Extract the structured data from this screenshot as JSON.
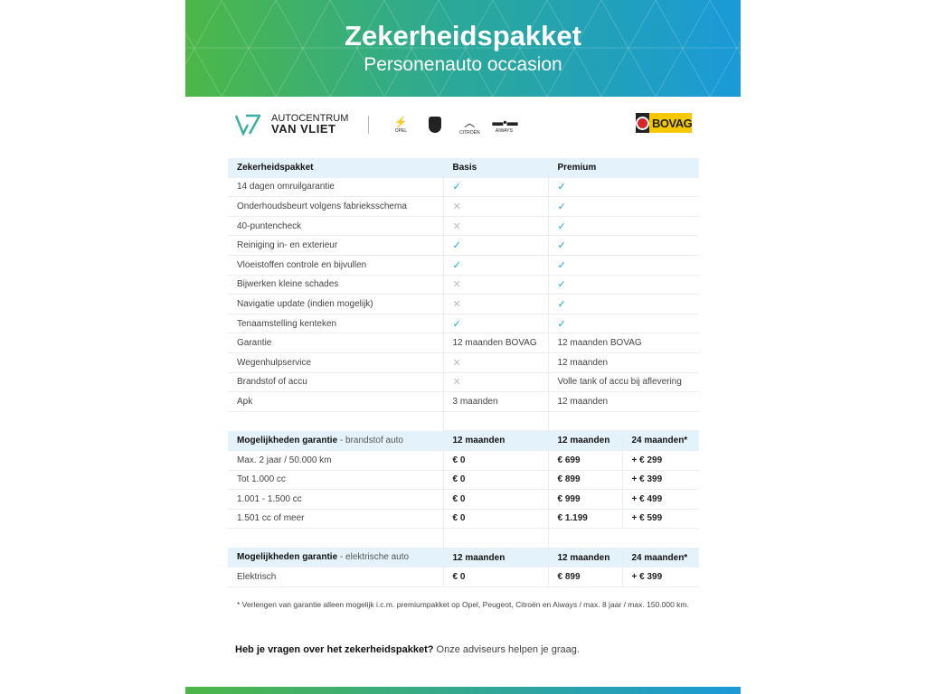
{
  "header": {
    "title": "Zekerheidspakket",
    "subtitle": "Personenauto occasion"
  },
  "logos": {
    "dealer_line1": "AUTOCENTRUM",
    "dealer_line2": "VAN VLIET",
    "brands": [
      "OPEL",
      "PEUGEOT",
      "CITROËN",
      "AIWAYS"
    ],
    "bovag": "BOVAG"
  },
  "colors": {
    "green": "#4db748",
    "blue": "#1a9ad8",
    "check": "#1ba0d8",
    "header_row": "#e3f2fb"
  },
  "package_table": {
    "headers": [
      "Zekerheidspakket",
      "Basis",
      "Premium"
    ],
    "rows": [
      [
        "14 dagen omruilgarantie",
        "check",
        "check"
      ],
      [
        "Onderhoudsbeurt volgens fabrieksschema",
        "cross",
        "check"
      ],
      [
        "40-puntencheck",
        "cross",
        "check"
      ],
      [
        "Reiniging in- en exterieur",
        "check",
        "check"
      ],
      [
        "Vloeistoffen controle en bijvullen",
        "check",
        "check"
      ],
      [
        "Bijwerken kleine schades",
        "cross",
        "check"
      ],
      [
        "Navigatie update (indien mogelijk)",
        "cross",
        "check"
      ],
      [
        "Tenaamstelling kenteken",
        "check",
        "check"
      ],
      [
        "Garantie",
        "12 maanden BOVAG",
        "12 maanden BOVAG"
      ],
      [
        "Wegenhulpservice",
        "cross",
        "12 maanden"
      ],
      [
        "Brandstof of accu",
        "cross",
        "Volle tank of accu bij aflevering"
      ],
      [
        "Apk",
        "3 maanden",
        "12 maanden"
      ]
    ]
  },
  "fuel_table": {
    "title": "Mogelijkheden garantie",
    "subtitle": "- brandstof auto",
    "headers": [
      "12 maanden",
      "12 maanden",
      "24 maanden*"
    ],
    "rows": [
      [
        "Max. 2 jaar / 50.000 km",
        "€ 0",
        "€ 699",
        "+ € 299"
      ],
      [
        "Tot 1.000 cc",
        "€ 0",
        "€ 899",
        "+ € 399"
      ],
      [
        "1.001 - 1.500 cc",
        "€ 0",
        "€ 999",
        "+ € 499"
      ],
      [
        "1.501 cc of meer",
        "€ 0",
        "€ 1.199",
        "+ € 599"
      ]
    ]
  },
  "electric_table": {
    "title": "Mogelijkheden garantie",
    "subtitle": "- elektrische auto",
    "headers": [
      "12 maanden",
      "12 maanden",
      "24 maanden*"
    ],
    "rows": [
      [
        "Elektrisch",
        "€ 0",
        "€ 899",
        "+ € 399"
      ]
    ]
  },
  "footnote": "* Verlengen van garantie alleen mogelijk i.c.m. premiumpakket op Opel, Peugeot, Citroën en Aiways / max. 8 jaar / max. 150.000 km.",
  "question": {
    "bold": "Heb je vragen over het zekerheidspakket?",
    "rest": " Onze adviseurs helpen je graag."
  }
}
